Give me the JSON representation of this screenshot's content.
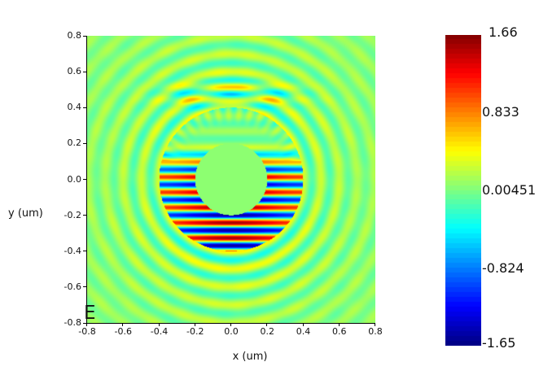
{
  "chart_data": {
    "type": "heatmap",
    "field_label": "E",
    "xlabel": "x (um)",
    "ylabel": "y (um)",
    "xlim": [
      -0.8,
      0.8
    ],
    "ylim": [
      -0.8,
      0.8
    ],
    "xticks": [
      "-0.8",
      "-0.6",
      "-0.4",
      "-0.2",
      "0.0",
      "0.2",
      "0.4",
      "0.6",
      "0.8"
    ],
    "yticks": [
      "0.8",
      "0.6",
      "0.4",
      "0.2",
      "0.0",
      "-0.2",
      "-0.4",
      "-0.6",
      "-0.8"
    ],
    "colormap": "jet",
    "colorbar": {
      "min": -1.65,
      "max": 1.66,
      "tick_labels": [
        "1.66",
        "0.833",
        "0.00451",
        "-0.824",
        "-1.65"
      ],
      "tick_values": [
        1.66,
        0.833,
        0.00451,
        -0.824,
        -1.65
      ]
    },
    "structure": {
      "ring_inner_radius_um": 0.2,
      "ring_outer_radius_um": 0.4
    },
    "grid": false
  }
}
